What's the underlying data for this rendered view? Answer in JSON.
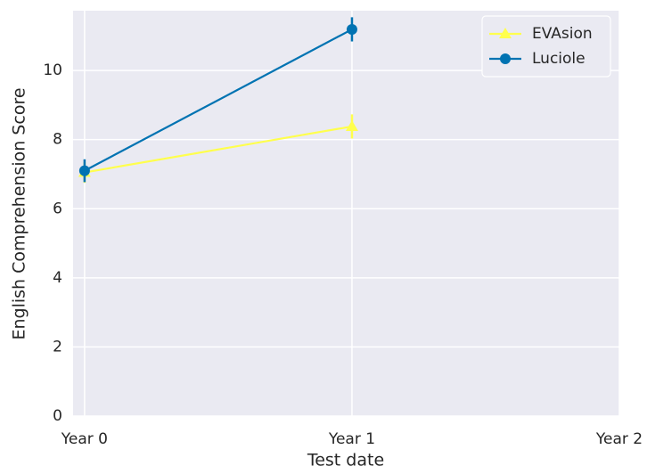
{
  "chart_data": {
    "type": "line",
    "xlabel": "Test date",
    "ylabel": "English Comprehension Score",
    "categories": [
      "Year 0",
      "Year 1",
      "Year 2"
    ],
    "xlim": [
      -0.043,
      2
    ],
    "series": [
      {
        "name": "EVAsion",
        "color": "#ffff4d",
        "marker": "triangle",
        "values": [
          7.05,
          8.38,
          null
        ],
        "errors": [
          0.3,
          0.35,
          null
        ]
      },
      {
        "name": "Luciole",
        "color": "#0173b2",
        "marker": "circle",
        "values": [
          7.1,
          11.19,
          null
        ],
        "errors": [
          0.33,
          0.35,
          null
        ]
      }
    ],
    "ylim": [
      0,
      11.73
    ],
    "yticks": [
      0,
      2,
      4,
      6,
      8,
      10
    ],
    "grid": true,
    "legend": "upper right"
  }
}
